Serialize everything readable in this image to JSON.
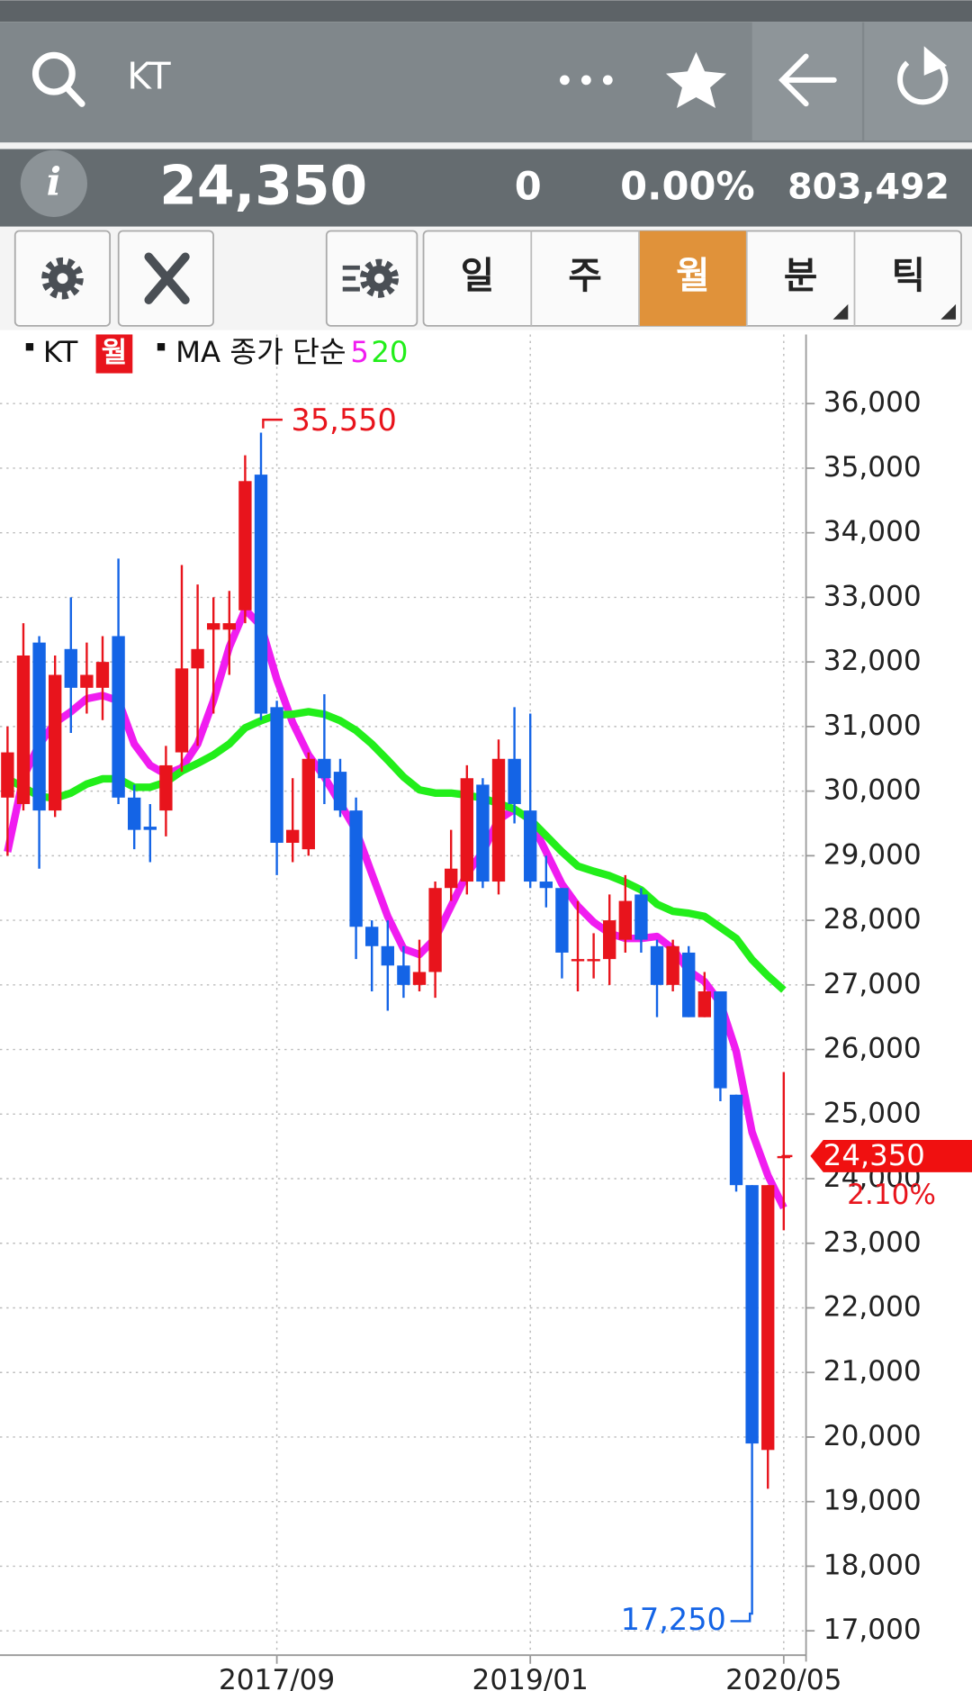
{
  "header": {
    "search_title": "KT"
  },
  "quote": {
    "info": "i",
    "price": "24,350",
    "change": "0",
    "change_pct": "0.00%",
    "volume": "803,492"
  },
  "tabs": [
    "일",
    "주",
    "월",
    "분",
    "틱"
  ],
  "selected_tab": 2,
  "chart_data": {
    "type": "candlestick",
    "legend": {
      "symbol": "KT",
      "period": "월",
      "indicator": "MA 종가 단순"
    },
    "categories": [
      null,
      null,
      null,
      null,
      null,
      null,
      null,
      null,
      null,
      null,
      null,
      null,
      null,
      null,
      null,
      null,
      null,
      "2017/09",
      null,
      null,
      null,
      null,
      null,
      null,
      null,
      null,
      null,
      null,
      null,
      null,
      null,
      null,
      null,
      "2019/01",
      null,
      null,
      null,
      null,
      null,
      null,
      null,
      null,
      null,
      null,
      null,
      null,
      null,
      null,
      null,
      "2020/05"
    ],
    "open": [
      29900,
      29800,
      32300,
      29700,
      32200,
      31600,
      31600,
      32400,
      29900,
      29450,
      29700,
      30600,
      31900,
      32500,
      32500,
      32800,
      34900,
      31300,
      29200,
      29100,
      30500,
      30300,
      29700,
      27900,
      27600,
      27300,
      27000,
      27200,
      28500,
      28600,
      30100,
      28600,
      30500,
      29700,
      28600,
      28500,
      27400,
      27400,
      27400,
      27700,
      28400,
      27600,
      27000,
      27500,
      26500,
      26900,
      25300,
      23900,
      19800,
      24350
    ],
    "high": [
      31000,
      32600,
      32400,
      32100,
      33000,
      32300,
      32400,
      33600,
      30100,
      29800,
      30700,
      33500,
      33200,
      33000,
      33100,
      35200,
      35550,
      31400,
      30200,
      30600,
      31500,
      30500,
      29900,
      28000,
      28000,
      27600,
      27700,
      28600,
      29400,
      30400,
      30200,
      30800,
      31300,
      31200,
      29000,
      28500,
      28300,
      27800,
      28400,
      28700,
      28500,
      27700,
      27700,
      27600,
      27200,
      26900,
      25300,
      23900,
      23900,
      25650
    ],
    "low": [
      29000,
      29700,
      28800,
      29600,
      30900,
      31200,
      31100,
      29800,
      29100,
      28900,
      29300,
      30300,
      30700,
      31200,
      31800,
      32600,
      31100,
      28700,
      28900,
      29000,
      29800,
      29600,
      27400,
      26900,
      26600,
      26800,
      26900,
      26800,
      28300,
      28400,
      28500,
      28400,
      29500,
      28500,
      28200,
      27100,
      26900,
      27100,
      27000,
      27500,
      27500,
      26500,
      26900,
      26500,
      26500,
      25200,
      23800,
      17250,
      19200,
      23200
    ],
    "close": [
      30600,
      32100,
      29700,
      31800,
      31600,
      31800,
      32000,
      29900,
      29400,
      29400,
      30400,
      31900,
      32200,
      32600,
      32600,
      34800,
      31200,
      29200,
      29400,
      30500,
      30200,
      29700,
      27900,
      27600,
      27300,
      27000,
      27200,
      28500,
      28800,
      30200,
      28600,
      30500,
      29800,
      28600,
      28500,
      27500,
      27400,
      27400,
      28000,
      28300,
      27700,
      27000,
      27600,
      26500,
      26900,
      25400,
      23900,
      19900,
      23900,
      24350
    ],
    "up_color": "#e8141c",
    "down_color": "#1464e6",
    "series": [
      {
        "name": "5",
        "color": "#f01cf0",
        "values": [
          29060,
          30220,
          30720,
          31060,
          31230,
          31430,
          31480,
          31400,
          30730,
          30400,
          30260,
          30360,
          30730,
          31400,
          32230,
          32810,
          32560,
          31730,
          31060,
          30560,
          30220,
          29810,
          29390,
          28720,
          28060,
          27560,
          27470,
          27720,
          28220,
          28720,
          29060,
          29560,
          29720,
          29560,
          29060,
          28560,
          28220,
          27970,
          27800,
          27720,
          27720,
          27750,
          27560,
          27220,
          27050,
          26720,
          25970,
          24720,
          24050,
          23550
        ]
      },
      {
        "name": "20",
        "color": "#22ee1a",
        "values": [
          30190,
          30060,
          29920,
          29890,
          29970,
          30110,
          30190,
          30190,
          30060,
          30060,
          30140,
          30310,
          30430,
          30560,
          30730,
          30980,
          31090,
          31180,
          31190,
          31230,
          31190,
          31090,
          30940,
          30730,
          30480,
          30220,
          30020,
          29970,
          29970,
          29940,
          29890,
          29810,
          29720,
          29560,
          29310,
          29060,
          28840,
          28760,
          28690,
          28590,
          28470,
          28250,
          28140,
          28110,
          28060,
          27890,
          27720,
          27390,
          27140,
          26920
        ]
      }
    ],
    "high_label": "35,550",
    "low_label": "17,250",
    "last_label": "24,350",
    "last_change": "2.10%",
    "ylim": [
      16623,
      37070
    ],
    "yticks": [
      {
        "value": 17000,
        "label": "17,000"
      },
      {
        "value": 18000,
        "label": "18,000"
      },
      {
        "value": 19000,
        "label": "19,000"
      },
      {
        "value": 20000,
        "label": "20,000"
      },
      {
        "value": 21000,
        "label": "21,000"
      },
      {
        "value": 22000,
        "label": "22,000"
      },
      {
        "value": 23000,
        "label": "23,000"
      },
      {
        "value": 24000,
        "label": "24,000"
      },
      {
        "value": 25000,
        "label": "25,000"
      },
      {
        "value": 26000,
        "label": "26,000"
      },
      {
        "value": 27000,
        "label": "27,000"
      },
      {
        "value": 28000,
        "label": "28,000"
      },
      {
        "value": 29000,
        "label": "29,000"
      },
      {
        "value": 30000,
        "label": "30,000"
      },
      {
        "value": 31000,
        "label": "31,000"
      },
      {
        "value": 32000,
        "label": "32,000"
      },
      {
        "value": 33000,
        "label": "33,000"
      },
      {
        "value": 34000,
        "label": "34,000"
      },
      {
        "value": 35000,
        "label": "35,000"
      },
      {
        "value": 36000,
        "label": "36,000"
      }
    ],
    "grid": true
  }
}
